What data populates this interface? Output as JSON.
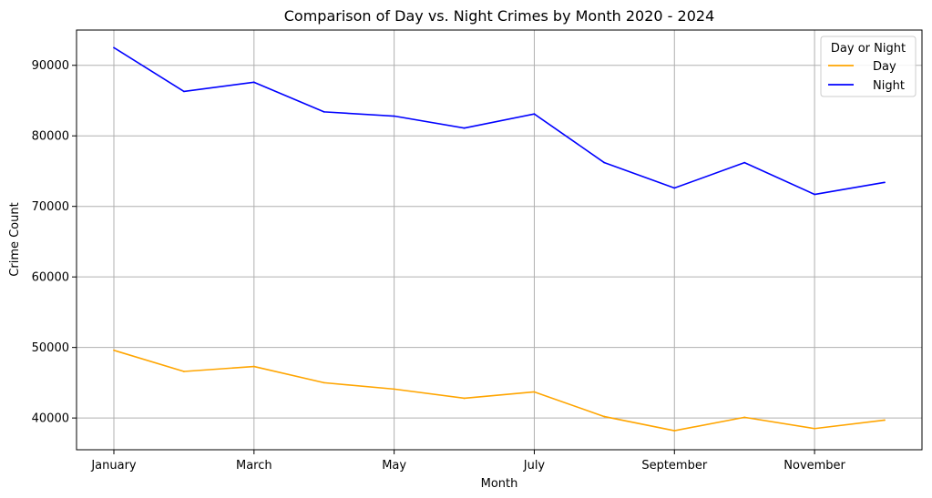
{
  "chart_data": {
    "type": "line",
    "title": "Comparison of Day vs. Night Crimes by Month 2020 - 2024",
    "xlabel": "Month",
    "ylabel": "Crime Count",
    "categories": [
      "January",
      "February",
      "March",
      "April",
      "May",
      "June",
      "July",
      "August",
      "September",
      "October",
      "November",
      "December"
    ],
    "x_tick_labels": [
      "January",
      "March",
      "May",
      "July",
      "September",
      "November"
    ],
    "x_tick_indices": [
      0,
      2,
      4,
      6,
      8,
      10
    ],
    "y_ticks": [
      40000,
      50000,
      60000,
      70000,
      80000,
      90000
    ],
    "ylim": [
      35500,
      95000
    ],
    "grid": true,
    "legend": {
      "title": "Day or Night",
      "placement": "top-right"
    },
    "series": [
      {
        "name": "Day",
        "color": "#FFA500",
        "values": [
          49600,
          46600,
          47300,
          45000,
          44100,
          42800,
          43700,
          40200,
          38200,
          40100,
          38500,
          39700
        ]
      },
      {
        "name": "Night",
        "color": "#0000FF",
        "values": [
          92500,
          86300,
          87600,
          83400,
          82800,
          81100,
          83100,
          76200,
          72600,
          76200,
          71700,
          73400
        ]
      }
    ]
  }
}
